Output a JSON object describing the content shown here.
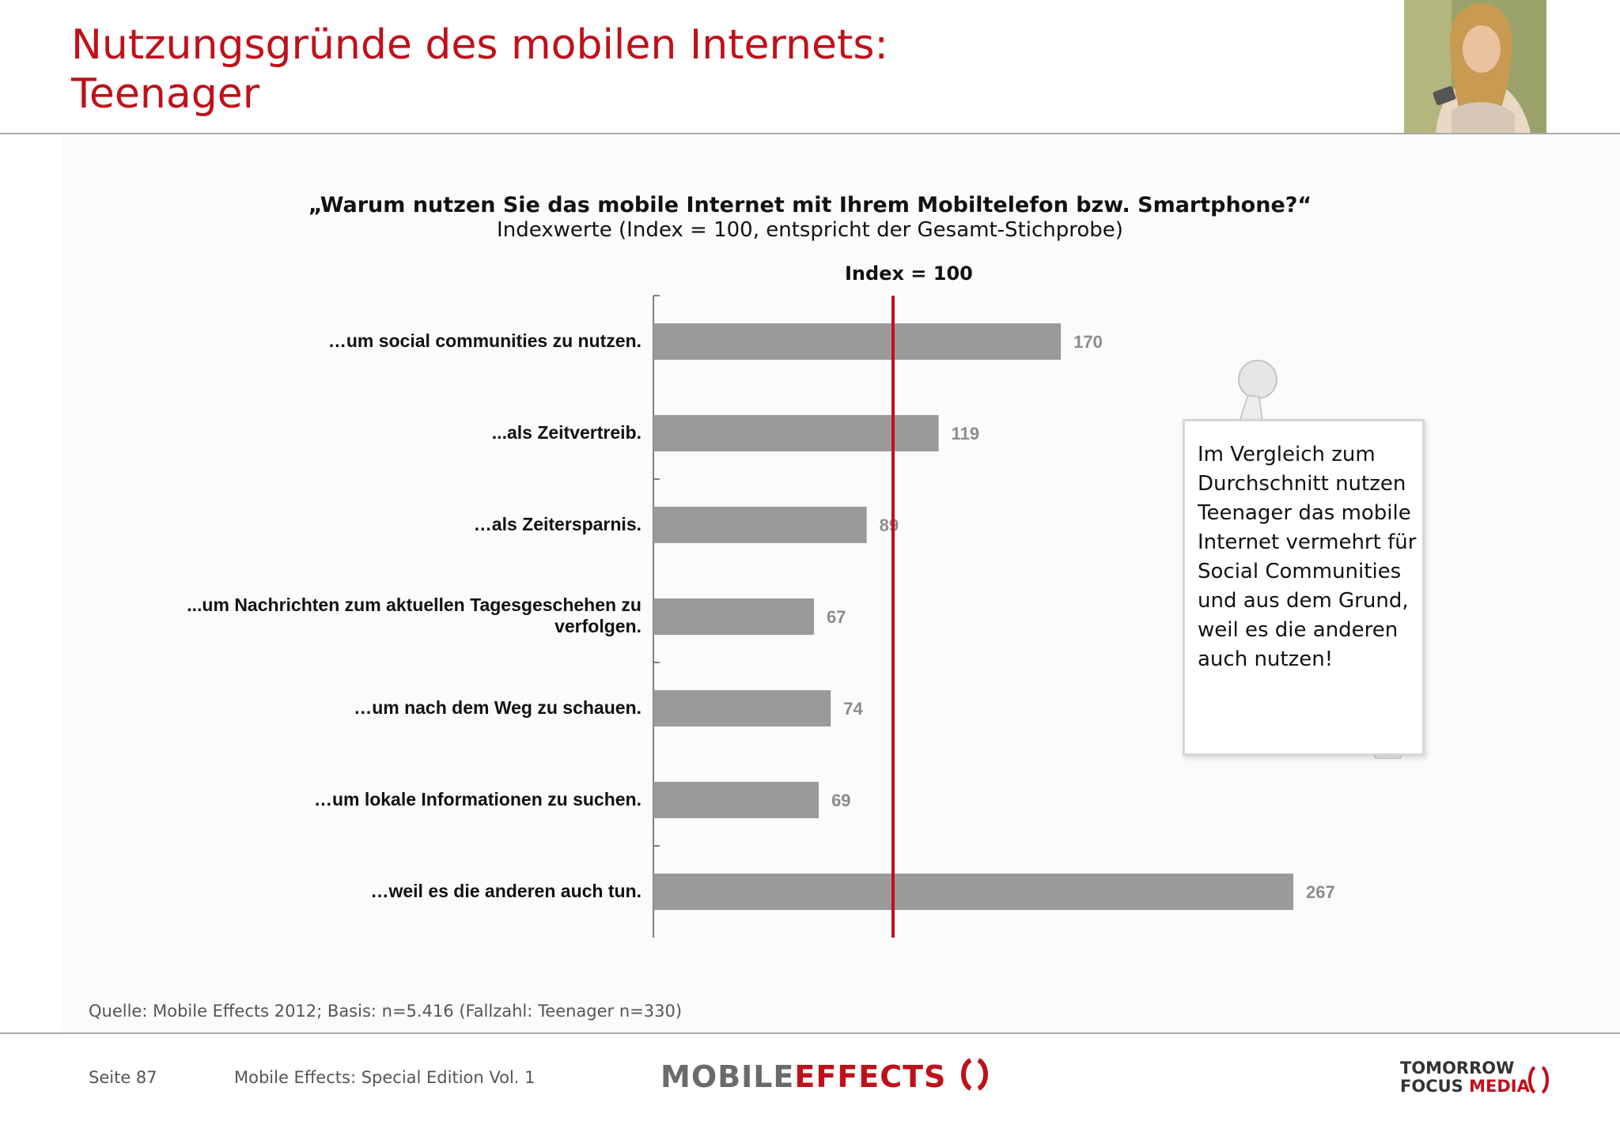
{
  "header": {
    "title_line1": "Nutzungsgründe des mobilen Internets:",
    "title_line2": "Teenager"
  },
  "chart_data": {
    "type": "bar",
    "orientation": "horizontal",
    "title": "„Warum nutzen Sie das mobile Internet mit Ihrem Mobiltelefon bzw. Smartphone?“",
    "subtitle": "Indexwerte (Index = 100, entspricht der Gesamt-Stichprobe)",
    "reference_line": {
      "value": 100,
      "label": "Index = 100",
      "color": "#c0101a"
    },
    "categories": [
      "…um social communities zu nutzen.",
      "...als Zeitvertreib.",
      "…als Zeitersparnis.",
      "...um Nachrichten zum aktuellen Tagesgeschehen zu verfolgen.",
      "…um nach dem Weg zu schauen.",
      "…um lokale Informationen zu suchen.",
      "…weil es die anderen auch tun."
    ],
    "values": [
      170,
      119,
      89,
      67,
      74,
      69,
      267
    ],
    "xlim": [
      0,
      280
    ],
    "bar_color": "#9a9a9c",
    "value_label_color": "#8c8c8c",
    "grid": false
  },
  "callout": {
    "text": "Im Vergleich zum Durchschnitt nutzen Teenager das mobile Internet vermehrt für Social Communities und aus dem Grund, weil es die anderen auch nutzen!"
  },
  "source": "Quelle: Mobile Effects 2012; Basis: n=5.416 (Fallzahl: Teenager n=330)",
  "footer": {
    "page": "Seite 87",
    "edition": "Mobile Effects: Special Edition Vol. 1",
    "logo_left_part1": "MOBILE",
    "logo_left_part2": "EFFECTS",
    "logo_right_line1": "TOMORROW",
    "logo_right_line2a": "FOCUS",
    "logo_right_line2b": "MEDIA"
  }
}
